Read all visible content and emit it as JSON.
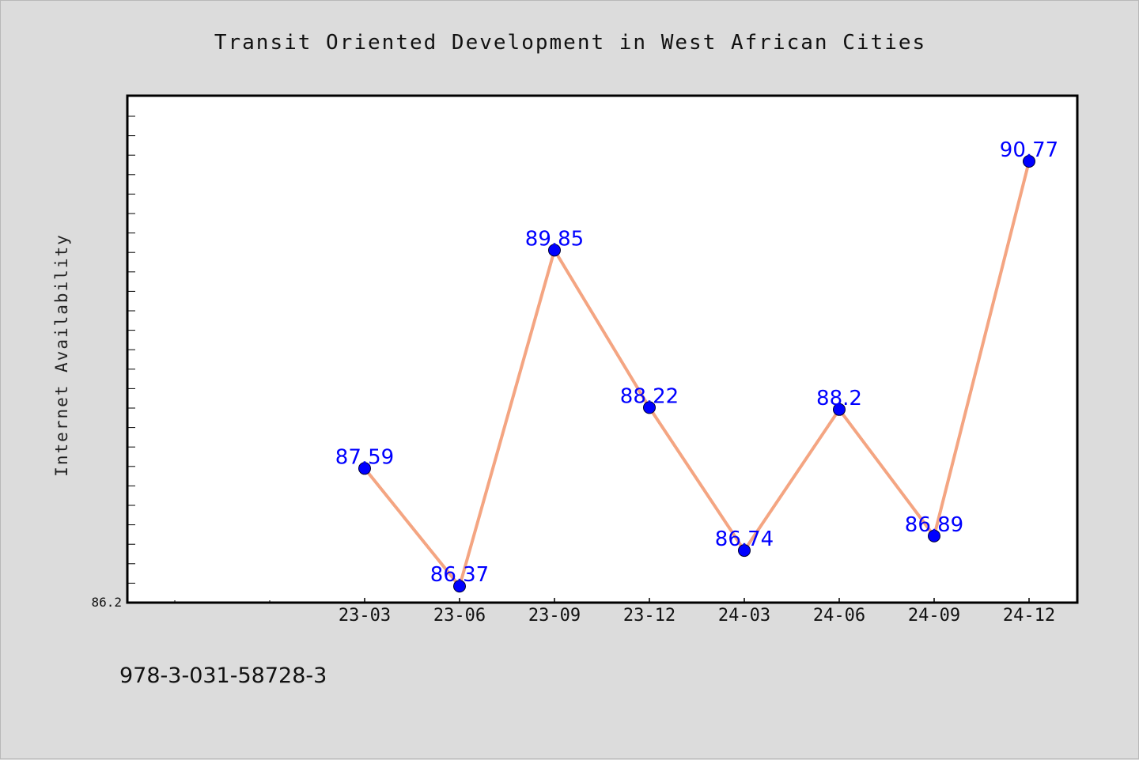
{
  "chart_data": {
    "type": "line",
    "title": "Transit Oriented Development in West African Cities",
    "xlabel": "",
    "ylabel": "Internet Availability",
    "categories": [
      "23-03",
      "23-06",
      "23-09",
      "23-12",
      "24-03",
      "24-06",
      "24-09",
      "24-12"
    ],
    "series": [
      {
        "values": [
          87.59,
          86.37,
          89.85,
          88.22,
          86.74,
          88.2,
          86.89,
          90.77
        ],
        "data_labels": [
          "87.59",
          "86.37",
          "89.85",
          "88.22",
          "86.74",
          "88.2",
          "86.89",
          "90.77"
        ],
        "line_color": "#f4a582",
        "marker_color": "#0000ff"
      }
    ],
    "ylim": [
      86.2,
      91.45
    ],
    "y_tick_labels": [
      "86.2"
    ],
    "grid": false,
    "legend": "none"
  },
  "footer": {
    "isbn": "978-3-031-58728-3"
  }
}
